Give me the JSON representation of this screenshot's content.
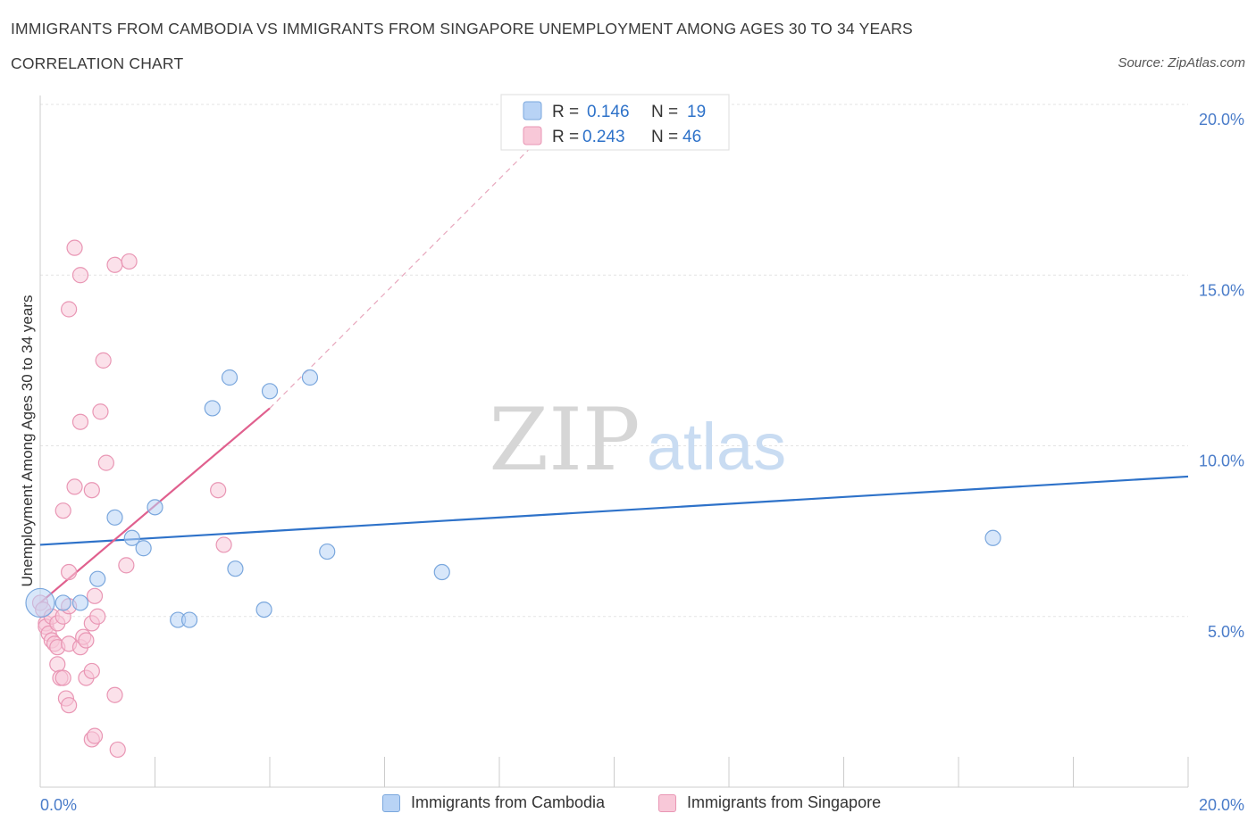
{
  "title": "IMMIGRANTS FROM CAMBODIA VS IMMIGRANTS FROM SINGAPORE UNEMPLOYMENT AMONG AGES 30 TO 34 YEARS",
  "subtitle": "CORRELATION CHART",
  "source": "Source: ZipAtlas.com",
  "watermark": {
    "zip": "ZIP",
    "atlas": "atlas"
  },
  "legend_top": {
    "series1": {
      "r_label": "R = ",
      "r_value": "0.146",
      "n_label": "N = ",
      "n_value": "19"
    },
    "series2": {
      "r_label": "R = ",
      "r_value": "0.243",
      "n_label": "N = ",
      "n_value": "46"
    }
  },
  "colors": {
    "blue_fill": "#b8d3f5",
    "blue_stroke": "#7aa7dd",
    "blue_line": "#2e72c9",
    "pink_fill": "#f8c8d8",
    "pink_stroke": "#e996b4",
    "pink_line": "#e0608e",
    "axis_text": "#4a7cc9",
    "grid": "#e3e3e3"
  },
  "chart_data": {
    "type": "scatter",
    "title": "IMMIGRANTS FROM CAMBODIA VS IMMIGRANTS FROM SINGAPORE UNEMPLOYMENT AMONG AGES 30 TO 34 YEARS",
    "xlabel": "",
    "ylabel": "Unemployment Among Ages 30 to 34 years",
    "xlim": [
      0,
      20
    ],
    "ylim": [
      0,
      20
    ],
    "x_tick_labels": [
      {
        "value": 0,
        "label": "0.0%"
      },
      {
        "value": 20,
        "label": "20.0%"
      }
    ],
    "y_tick_labels": [
      {
        "value": 5,
        "label": "5.0%"
      },
      {
        "value": 10,
        "label": "10.0%"
      },
      {
        "value": 15,
        "label": "15.0%"
      },
      {
        "value": 20,
        "label": "20.0%"
      }
    ],
    "series": [
      {
        "name": "Immigrants from Cambodia",
        "color": "blue",
        "r": 0.146,
        "n": 19,
        "points": [
          [
            0.0,
            5.4
          ],
          [
            0.4,
            5.4
          ],
          [
            0.7,
            5.4
          ],
          [
            1.0,
            6.1
          ],
          [
            1.3,
            7.9
          ],
          [
            1.6,
            7.3
          ],
          [
            1.8,
            7.0
          ],
          [
            2.0,
            8.2
          ],
          [
            2.4,
            4.9
          ],
          [
            2.6,
            4.9
          ],
          [
            3.0,
            11.1
          ],
          [
            3.3,
            12.0
          ],
          [
            3.4,
            6.4
          ],
          [
            3.9,
            5.2
          ],
          [
            4.0,
            11.6
          ],
          [
            4.7,
            12.0
          ],
          [
            5.0,
            6.9
          ],
          [
            7.0,
            6.3
          ],
          [
            16.6,
            7.3
          ]
        ],
        "trend": {
          "x": [
            0,
            20
          ],
          "y": [
            7.1,
            9.1
          ],
          "style": "solid"
        }
      },
      {
        "name": "Immigrants from Singapore",
        "color": "pink",
        "r": 0.243,
        "n": 46,
        "points": [
          [
            0.0,
            5.4
          ],
          [
            0.05,
            5.2
          ],
          [
            0.1,
            4.8
          ],
          [
            0.1,
            4.7
          ],
          [
            0.15,
            4.5
          ],
          [
            0.2,
            5.0
          ],
          [
            0.2,
            4.3
          ],
          [
            0.25,
            4.2
          ],
          [
            0.3,
            4.8
          ],
          [
            0.3,
            4.1
          ],
          [
            0.3,
            3.6
          ],
          [
            0.35,
            3.2
          ],
          [
            0.4,
            5.0
          ],
          [
            0.4,
            3.2
          ],
          [
            0.4,
            8.1
          ],
          [
            0.45,
            2.6
          ],
          [
            0.5,
            6.3
          ],
          [
            0.5,
            14.0
          ],
          [
            0.5,
            5.3
          ],
          [
            0.5,
            2.4
          ],
          [
            0.5,
            4.2
          ],
          [
            0.6,
            8.8
          ],
          [
            0.6,
            15.8
          ],
          [
            0.7,
            4.1
          ],
          [
            0.7,
            15.0
          ],
          [
            0.7,
            10.7
          ],
          [
            0.75,
            4.4
          ],
          [
            0.8,
            3.2
          ],
          [
            0.8,
            4.3
          ],
          [
            0.9,
            8.7
          ],
          [
            0.9,
            4.8
          ],
          [
            0.9,
            1.4
          ],
          [
            0.95,
            1.5
          ],
          [
            0.9,
            3.4
          ],
          [
            0.95,
            5.6
          ],
          [
            1.0,
            5.0
          ],
          [
            1.05,
            11.0
          ],
          [
            1.1,
            12.5
          ],
          [
            1.15,
            9.5
          ],
          [
            1.3,
            2.7
          ],
          [
            1.3,
            15.3
          ],
          [
            1.35,
            1.1
          ],
          [
            1.5,
            6.5
          ],
          [
            1.55,
            15.4
          ],
          [
            3.1,
            8.7
          ],
          [
            3.2,
            7.1
          ]
        ],
        "trend": {
          "x": [
            0,
            4.0
          ],
          "y": [
            5.4,
            11.1
          ],
          "style": "solid",
          "dashed_extension_to": [
            9.3,
            20.0
          ]
        }
      }
    ]
  },
  "legend_bottom": {
    "series1_label": "Immigrants from Cambodia",
    "series2_label": "Immigrants from Singapore"
  }
}
